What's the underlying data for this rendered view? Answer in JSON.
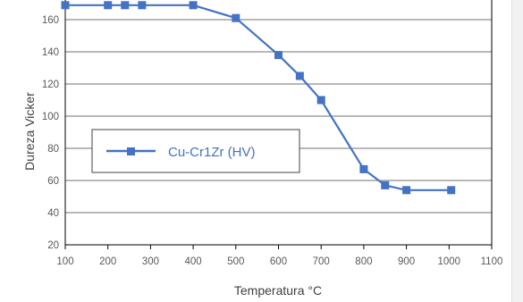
{
  "chart_data": {
    "type": "line",
    "xlabel": "Temperatura °C",
    "ylabel": "Dureza Vicker",
    "xlim": [
      100,
      1100
    ],
    "ylim": [
      20,
      170
    ],
    "x_ticks": [
      100,
      200,
      300,
      400,
      500,
      600,
      700,
      800,
      900,
      1000,
      1100
    ],
    "y_ticks": [
      20,
      40,
      60,
      80,
      100,
      120,
      140,
      160
    ],
    "grid": "horizontal",
    "legend_position": "center-left",
    "colors": {
      "series": "#4472C4",
      "grid": "#404040",
      "axis": "#000000"
    },
    "series": [
      {
        "name": "Cu-Cr1Zr (HV)",
        "marker": "square",
        "x": [
          100,
          200,
          240,
          280,
          400,
          500,
          600,
          650,
          700,
          800,
          850,
          900,
          1005
        ],
        "y": [
          169,
          169,
          169,
          169,
          169,
          161,
          138,
          125,
          110,
          67,
          57,
          54,
          54
        ]
      }
    ]
  }
}
